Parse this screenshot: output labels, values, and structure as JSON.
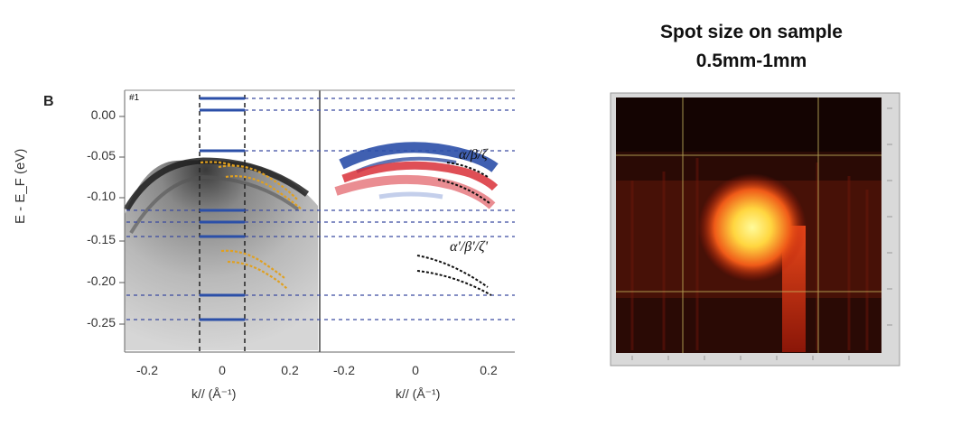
{
  "figure": {
    "panel_label": "B",
    "frame_label": "#1",
    "y_axis": {
      "label": "E - E_F (eV)",
      "ticks": [
        "0.00",
        "-0.05",
        "-0.10",
        "-0.15",
        "-0.20",
        "-0.25"
      ]
    },
    "x_axis_left": {
      "label": "k// (Å⁻¹)",
      "ticks": [
        "-0.2",
        "0",
        "0.2"
      ]
    },
    "x_axis_right": {
      "label": "k// (Å⁻¹)",
      "ticks": [
        "-0.2",
        "0",
        "0.2"
      ]
    },
    "band_labels": {
      "upper": "α/β/ζ",
      "lower": "α'/β'/ζ'"
    },
    "colors": {
      "blue_band": "#2b4fa8",
      "red_band": "#d93038",
      "dashed_lines": "#3a4aa0",
      "fit_curves": "#e0a020"
    }
  },
  "spot_image": {
    "title_line1": "Spot size on sample",
    "title_line2": "0.5mm-1mm",
    "colors": {
      "background": "#2a0a05",
      "spot_core": "#fff27a",
      "spot_glow": "#e83a10",
      "crosshair": "#c8b860"
    }
  }
}
